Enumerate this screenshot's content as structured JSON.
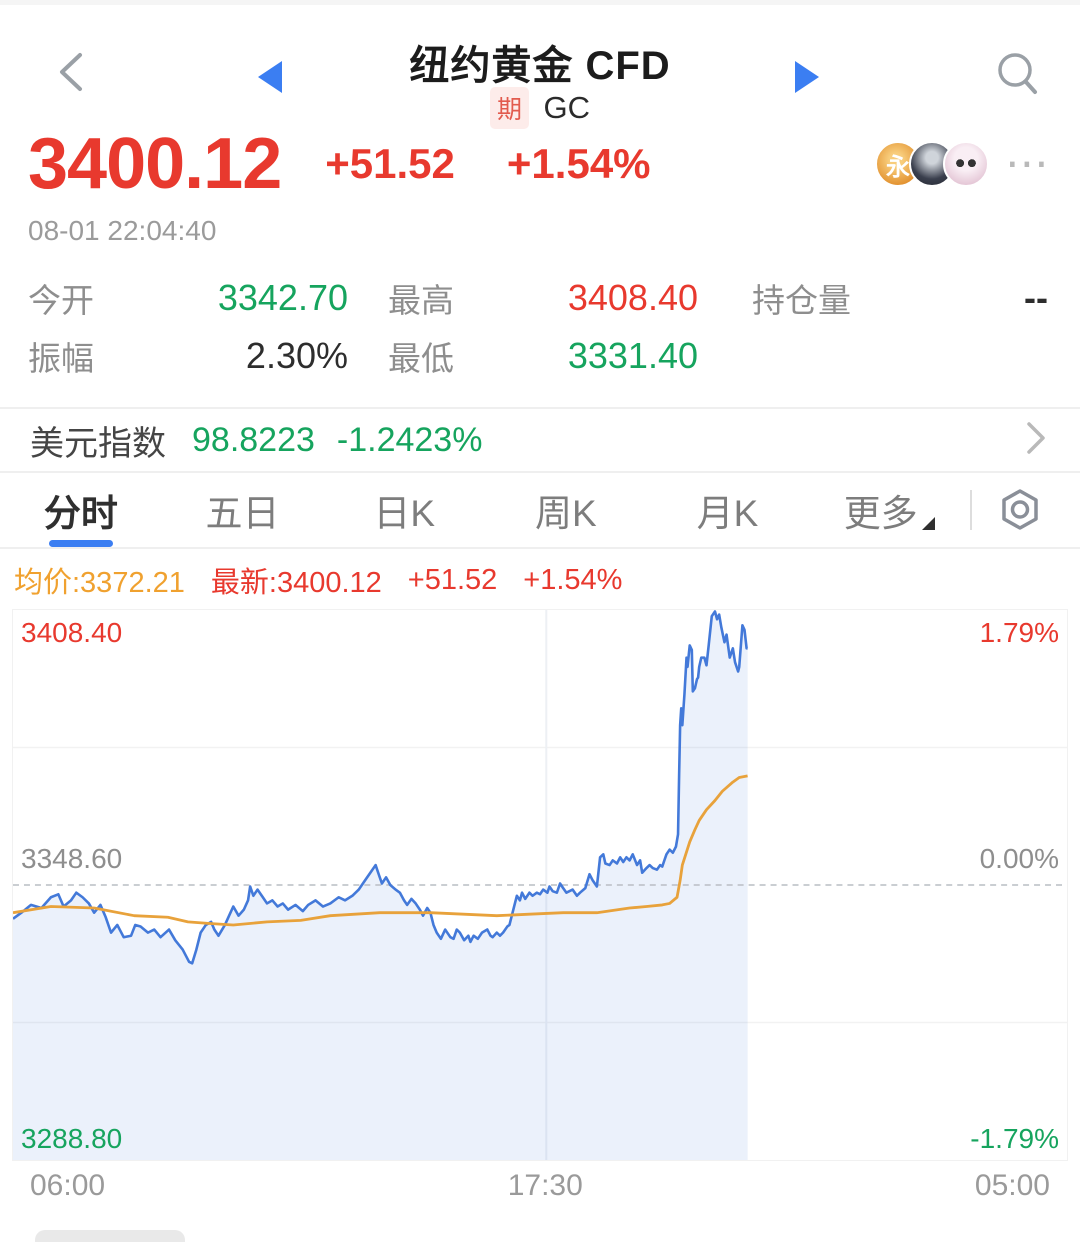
{
  "header": {
    "title": "纽约黄金 CFD",
    "badge": "期",
    "symbol": "GC"
  },
  "quote": {
    "price": "3400.12",
    "change": "+51.52",
    "change_pct": "+1.54%",
    "timestamp": "08-01 22:04:40",
    "avatar_1_text": "永",
    "more_icon_text": "⋯"
  },
  "stats": [
    {
      "label": "今开",
      "value": "3342.70"
    },
    {
      "label": "最高",
      "value": "3408.40"
    },
    {
      "label": "持仓量",
      "value": "--"
    },
    {
      "label": "振幅",
      "value": "2.30%"
    },
    {
      "label": "最低",
      "value": "3331.40"
    }
  ],
  "usd_index": {
    "label": "美元指数",
    "value": "98.8223",
    "change_pct": "-1.2423%"
  },
  "tabs": [
    {
      "label": "分时"
    },
    {
      "label": "五日"
    },
    {
      "label": "日K"
    },
    {
      "label": "周K"
    },
    {
      "label": "月K"
    },
    {
      "label": "更多"
    }
  ],
  "legend": {
    "avg": "均价:3372.21",
    "last": "最新:3400.12",
    "change": "+51.52",
    "change_pct": "+1.54%"
  },
  "colors": {
    "up_red": "#e8392e",
    "down_green": "#16a45e",
    "avg_orange": "#e8a23b",
    "price_blue": "#4379d9",
    "accent_blue": "#3b7ef2",
    "area_fill": "rgba(76,130,220,0.11)"
  },
  "chart_data": {
    "type": "line",
    "title": "分时 (intraday) — 纽约黄金 CFD",
    "prev_close": 3348.6,
    "open": 3342.7,
    "high": 3408.4,
    "low": 3331.4,
    "last": 3400.12,
    "avg": 3372.21,
    "ylim": [
      -1.79,
      1.79
    ],
    "y_left_labels": {
      "top": "3408.40",
      "mid": "3348.60",
      "bottom": "3288.80"
    },
    "y_right_labels": {
      "top": "1.79%",
      "mid": "0.00%",
      "bottom": "-1.79%"
    },
    "x_labels": [
      "06:00",
      "17:30",
      "05:00"
    ],
    "x_gridline_frac": 0.506,
    "grid": true,
    "series": [
      {
        "name": "price_pct",
        "points": [
          [
            0.0,
            -0.22
          ],
          [
            0.008,
            -0.18
          ],
          [
            0.017,
            -0.13
          ],
          [
            0.027,
            -0.15
          ],
          [
            0.036,
            -0.08
          ],
          [
            0.043,
            -0.06
          ],
          [
            0.048,
            -0.14
          ],
          [
            0.055,
            -0.1
          ],
          [
            0.06,
            -0.05
          ],
          [
            0.066,
            -0.08
          ],
          [
            0.072,
            -0.12
          ],
          [
            0.077,
            -0.18
          ],
          [
            0.083,
            -0.13
          ],
          [
            0.088,
            -0.21
          ],
          [
            0.093,
            -0.31
          ],
          [
            0.099,
            -0.26
          ],
          [
            0.105,
            -0.34
          ],
          [
            0.112,
            -0.33
          ],
          [
            0.116,
            -0.26
          ],
          [
            0.121,
            -0.27
          ],
          [
            0.128,
            -0.31
          ],
          [
            0.134,
            -0.29
          ],
          [
            0.14,
            -0.34
          ],
          [
            0.148,
            -0.29
          ],
          [
            0.154,
            -0.36
          ],
          [
            0.161,
            -0.42
          ],
          [
            0.167,
            -0.5
          ],
          [
            0.17,
            -0.51
          ],
          [
            0.174,
            -0.42
          ],
          [
            0.178,
            -0.31
          ],
          [
            0.183,
            -0.26
          ],
          [
            0.188,
            -0.24
          ],
          [
            0.191,
            -0.29
          ],
          [
            0.195,
            -0.33
          ],
          [
            0.201,
            -0.26
          ],
          [
            0.205,
            -0.2
          ],
          [
            0.209,
            -0.14
          ],
          [
            0.214,
            -0.2
          ],
          [
            0.219,
            -0.16
          ],
          [
            0.223,
            -0.1
          ],
          [
            0.225,
            -0.01
          ],
          [
            0.228,
            -0.07
          ],
          [
            0.232,
            -0.03
          ],
          [
            0.237,
            -0.08
          ],
          [
            0.241,
            -0.12
          ],
          [
            0.246,
            -0.1
          ],
          [
            0.251,
            -0.14
          ],
          [
            0.256,
            -0.12
          ],
          [
            0.261,
            -0.16
          ],
          [
            0.268,
            -0.13
          ],
          [
            0.275,
            -0.17
          ],
          [
            0.28,
            -0.13
          ],
          [
            0.287,
            -0.1
          ],
          [
            0.294,
            -0.14
          ],
          [
            0.301,
            -0.12
          ],
          [
            0.309,
            -0.08
          ],
          [
            0.315,
            -0.1
          ],
          [
            0.322,
            -0.07
          ],
          [
            0.328,
            -0.03
          ],
          [
            0.334,
            0.03
          ],
          [
            0.339,
            0.08
          ],
          [
            0.344,
            0.13
          ],
          [
            0.347,
            0.07
          ],
          [
            0.35,
            0.01
          ],
          [
            0.354,
            0.05
          ],
          [
            0.358,
            0.0
          ],
          [
            0.363,
            -0.03
          ],
          [
            0.367,
            -0.05
          ],
          [
            0.371,
            -0.1
          ],
          [
            0.374,
            -0.13
          ],
          [
            0.378,
            -0.09
          ],
          [
            0.382,
            -0.12
          ],
          [
            0.386,
            -0.16
          ],
          [
            0.389,
            -0.2
          ],
          [
            0.393,
            -0.15
          ],
          [
            0.396,
            -0.18
          ],
          [
            0.399,
            -0.26
          ],
          [
            0.402,
            -0.31
          ],
          [
            0.406,
            -0.35
          ],
          [
            0.41,
            -0.29
          ],
          [
            0.415,
            -0.34
          ],
          [
            0.418,
            -0.35
          ],
          [
            0.421,
            -0.29
          ],
          [
            0.424,
            -0.31
          ],
          [
            0.428,
            -0.36
          ],
          [
            0.432,
            -0.33
          ],
          [
            0.434,
            -0.37
          ],
          [
            0.437,
            -0.33
          ],
          [
            0.441,
            -0.35
          ],
          [
            0.445,
            -0.31
          ],
          [
            0.45,
            -0.29
          ],
          [
            0.453,
            -0.33
          ],
          [
            0.455,
            -0.34
          ],
          [
            0.459,
            -0.31
          ],
          [
            0.462,
            -0.33
          ],
          [
            0.465,
            -0.31
          ],
          [
            0.469,
            -0.27
          ],
          [
            0.471,
            -0.26
          ],
          [
            0.474,
            -0.18
          ],
          [
            0.478,
            -0.07
          ],
          [
            0.481,
            -0.1
          ],
          [
            0.483,
            -0.05
          ],
          [
            0.486,
            -0.09
          ],
          [
            0.49,
            -0.05
          ],
          [
            0.493,
            -0.07
          ],
          [
            0.497,
            -0.05
          ],
          [
            0.5,
            -0.06
          ],
          [
            0.503,
            -0.03
          ],
          [
            0.507,
            -0.05
          ],
          [
            0.509,
            -0.01
          ],
          [
            0.512,
            -0.04
          ],
          [
            0.516,
            -0.05
          ],
          [
            0.519,
            0.01
          ],
          [
            0.522,
            -0.02
          ],
          [
            0.525,
            -0.05
          ],
          [
            0.531,
            -0.03
          ],
          [
            0.535,
            -0.07
          ],
          [
            0.538,
            -0.05
          ],
          [
            0.543,
            -0.02
          ],
          [
            0.547,
            0.07
          ],
          [
            0.55,
            0.03
          ],
          [
            0.554,
            -0.01
          ],
          [
            0.557,
            0.18
          ],
          [
            0.56,
            0.2
          ],
          [
            0.562,
            0.14
          ],
          [
            0.566,
            0.13
          ],
          [
            0.569,
            0.16
          ],
          [
            0.573,
            0.14
          ],
          [
            0.576,
            0.18
          ],
          [
            0.579,
            0.15
          ],
          [
            0.582,
            0.18
          ],
          [
            0.585,
            0.16
          ],
          [
            0.588,
            0.2
          ],
          [
            0.592,
            0.13
          ],
          [
            0.595,
            0.16
          ],
          [
            0.597,
            0.08
          ],
          [
            0.601,
            0.11
          ],
          [
            0.604,
            0.13
          ],
          [
            0.607,
            0.11
          ],
          [
            0.611,
            0.1
          ],
          [
            0.614,
            0.13
          ],
          [
            0.616,
            0.12
          ],
          [
            0.618,
            0.16
          ],
          [
            0.62,
            0.2
          ],
          [
            0.623,
            0.23
          ],
          [
            0.626,
            0.21
          ],
          [
            0.629,
            0.25
          ],
          [
            0.631,
            0.33
          ],
          [
            0.632,
            0.72
          ],
          [
            0.633,
            1.04
          ],
          [
            0.634,
            1.15
          ],
          [
            0.635,
            1.04
          ],
          [
            0.637,
            1.24
          ],
          [
            0.639,
            1.48
          ],
          [
            0.64,
            1.42
          ],
          [
            0.642,
            1.56
          ],
          [
            0.644,
            1.53
          ],
          [
            0.645,
            1.26
          ],
          [
            0.647,
            1.28
          ],
          [
            0.649,
            1.34
          ],
          [
            0.65,
            1.35
          ],
          [
            0.651,
            1.42
          ],
          [
            0.653,
            1.48
          ],
          [
            0.656,
            1.48
          ],
          [
            0.658,
            1.43
          ],
          [
            0.66,
            1.56
          ],
          [
            0.663,
            1.75
          ],
          [
            0.666,
            1.78
          ],
          [
            0.668,
            1.73
          ],
          [
            0.67,
            1.76
          ],
          [
            0.672,
            1.68
          ],
          [
            0.675,
            1.58
          ],
          [
            0.677,
            1.63
          ],
          [
            0.68,
            1.48
          ],
          [
            0.683,
            1.54
          ],
          [
            0.685,
            1.45
          ],
          [
            0.688,
            1.39
          ],
          [
            0.689,
            1.42
          ],
          [
            0.692,
            1.69
          ],
          [
            0.694,
            1.66
          ],
          [
            0.696,
            1.54
          ],
          [
            0.697,
            1.54
          ]
        ]
      },
      {
        "name": "avg_pct",
        "points": [
          [
            0.0,
            -0.18
          ],
          [
            0.036,
            -0.14
          ],
          [
            0.077,
            -0.15
          ],
          [
            0.115,
            -0.2
          ],
          [
            0.147,
            -0.21
          ],
          [
            0.166,
            -0.24
          ],
          [
            0.185,
            -0.25
          ],
          [
            0.209,
            -0.26
          ],
          [
            0.241,
            -0.24
          ],
          [
            0.273,
            -0.23
          ],
          [
            0.301,
            -0.2
          ],
          [
            0.348,
            -0.18
          ],
          [
            0.396,
            -0.18
          ],
          [
            0.459,
            -0.2
          ],
          [
            0.49,
            -0.19
          ],
          [
            0.522,
            -0.18
          ],
          [
            0.554,
            -0.18
          ],
          [
            0.585,
            -0.15
          ],
          [
            0.601,
            -0.14
          ],
          [
            0.616,
            -0.13
          ],
          [
            0.623,
            -0.12
          ],
          [
            0.63,
            -0.08
          ],
          [
            0.633,
            0.03
          ],
          [
            0.635,
            0.13
          ],
          [
            0.642,
            0.28
          ],
          [
            0.647,
            0.36
          ],
          [
            0.651,
            0.42
          ],
          [
            0.658,
            0.49
          ],
          [
            0.666,
            0.55
          ],
          [
            0.673,
            0.61
          ],
          [
            0.683,
            0.67
          ],
          [
            0.689,
            0.7
          ],
          [
            0.697,
            0.71
          ]
        ]
      }
    ]
  },
  "x_axis": [
    "06:00",
    "17:30",
    "05:00"
  ]
}
